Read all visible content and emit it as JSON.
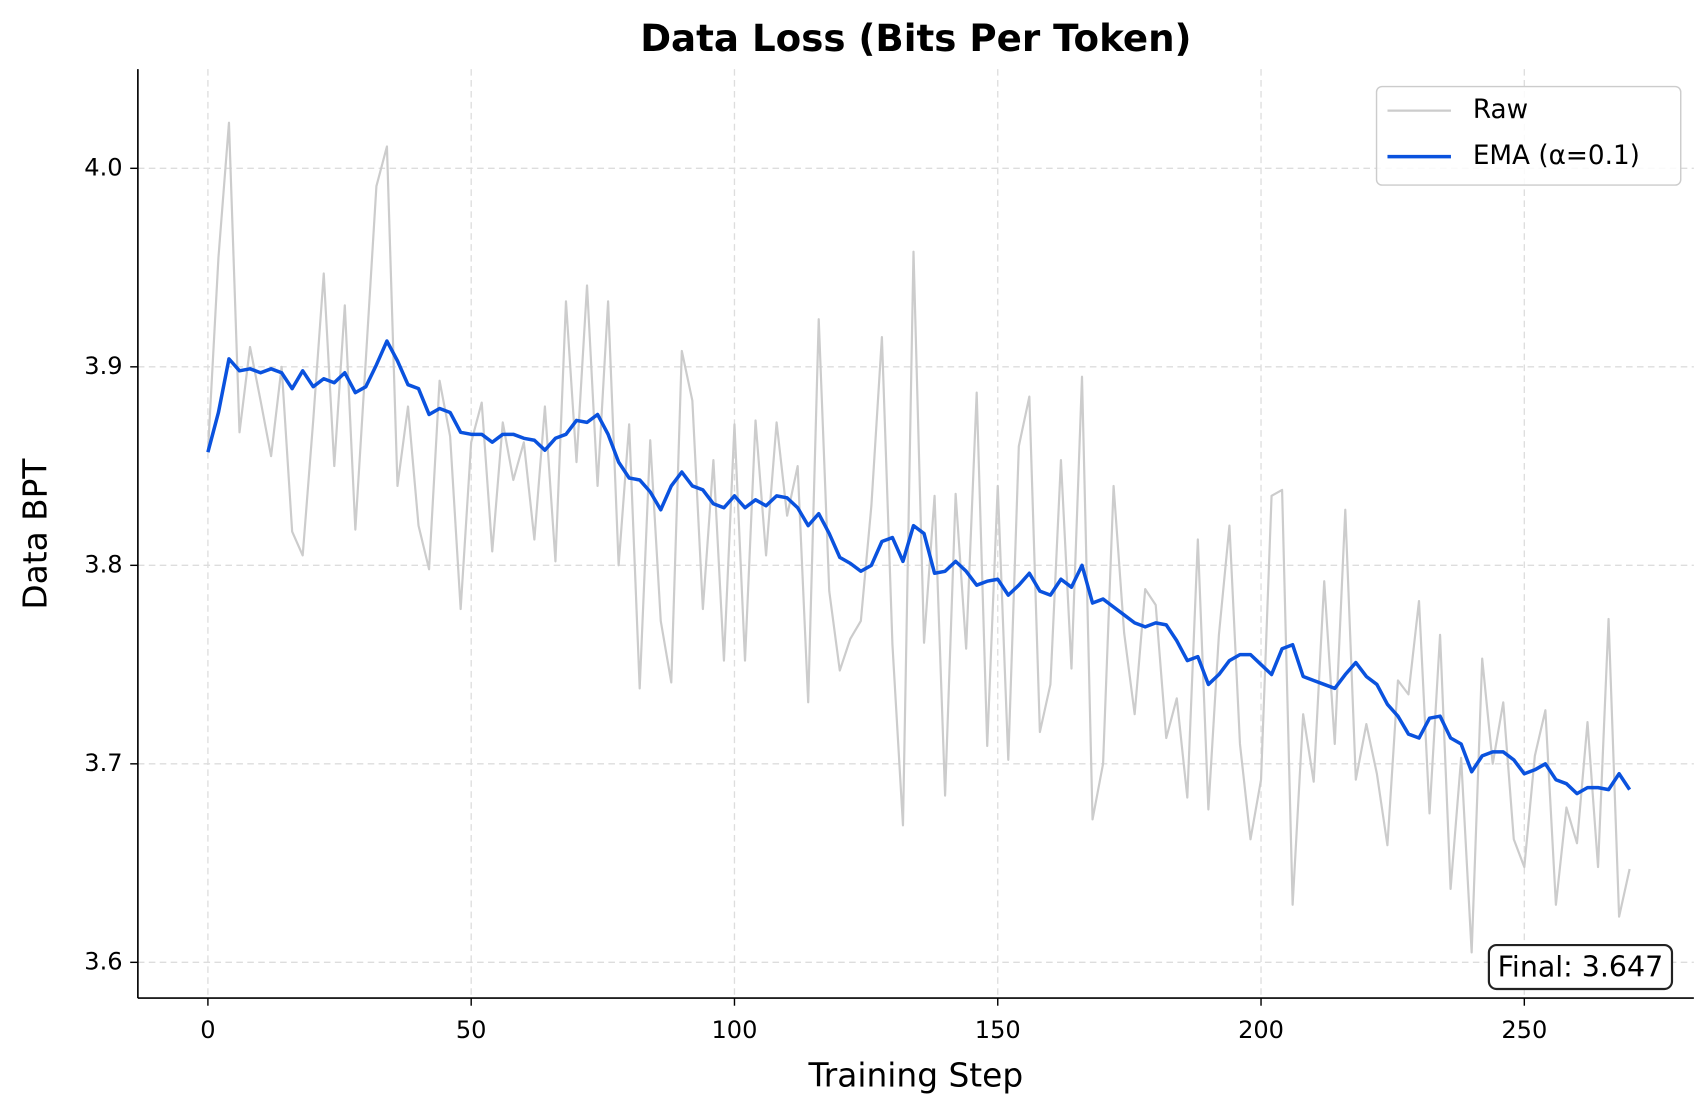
{
  "chart_data": {
    "type": "line",
    "title": "Data Loss (Bits Per Token)",
    "x_label": "Training Step",
    "y_label": "Data BPT",
    "x": [
      0,
      2,
      4,
      6,
      8,
      10,
      12,
      14,
      16,
      18,
      20,
      22,
      24,
      26,
      28,
      30,
      32,
      34,
      36,
      38,
      40,
      42,
      44,
      46,
      48,
      50,
      52,
      54,
      56,
      58,
      60,
      62,
      64,
      66,
      68,
      70,
      72,
      74,
      76,
      78,
      80,
      82,
      84,
      86,
      88,
      90,
      92,
      94,
      96,
      98,
      100,
      102,
      104,
      106,
      108,
      110,
      112,
      114,
      116,
      118,
      120,
      122,
      124,
      126,
      128,
      130,
      132,
      134,
      136,
      138,
      140,
      142,
      144,
      146,
      148,
      150,
      152,
      154,
      156,
      158,
      160,
      162,
      164,
      166,
      168,
      170,
      172,
      174,
      176,
      178,
      180,
      182,
      184,
      186,
      188,
      190,
      192,
      194,
      196,
      198,
      200,
      202,
      204,
      206,
      208,
      210,
      212,
      214,
      216,
      218,
      220,
      222,
      224,
      226,
      228,
      230,
      232,
      234,
      236,
      238,
      240,
      242,
      244,
      246,
      248,
      250,
      252,
      254,
      256,
      258,
      260,
      262,
      264,
      266,
      268,
      270
    ],
    "series": [
      {
        "name": "Raw",
        "color": "#cccccc",
        "width": 2,
        "values": [
          3.857,
          3.955,
          4.023,
          3.867,
          3.91,
          3.883,
          3.855,
          3.9,
          3.817,
          3.805,
          3.873,
          3.947,
          3.85,
          3.931,
          3.818,
          3.904,
          3.991,
          4.011,
          3.84,
          3.88,
          3.82,
          3.798,
          3.893,
          3.865,
          3.778,
          3.862,
          3.882,
          3.807,
          3.872,
          3.843,
          3.862,
          3.813,
          3.88,
          3.802,
          3.933,
          3.852,
          3.941,
          3.84,
          3.933,
          3.8,
          3.871,
          3.738,
          3.863,
          3.772,
          3.741,
          3.908,
          3.883,
          3.778,
          3.853,
          3.752,
          3.871,
          3.752,
          3.873,
          3.805,
          3.872,
          3.825,
          3.85,
          3.731,
          3.924,
          3.787,
          3.747,
          3.763,
          3.772,
          3.83,
          3.915,
          3.76,
          3.669,
          3.958,
          3.761,
          3.835,
          3.684,
          3.836,
          3.758,
          3.887,
          3.709,
          3.84,
          3.702,
          3.86,
          3.885,
          3.716,
          3.74,
          3.853,
          3.748,
          3.895,
          3.672,
          3.7,
          3.84,
          3.766,
          3.725,
          3.788,
          3.78,
          3.713,
          3.733,
          3.683,
          3.813,
          3.677,
          3.765,
          3.82,
          3.71,
          3.662,
          3.692,
          3.835,
          3.838,
          3.629,
          3.725,
          3.691,
          3.792,
          3.71,
          3.828,
          3.692,
          3.72,
          3.695,
          3.659,
          3.742,
          3.735,
          3.782,
          3.675,
          3.765,
          3.637,
          3.703,
          3.605,
          3.753,
          3.7,
          3.731,
          3.662,
          3.648,
          3.704,
          3.727,
          3.629,
          3.678,
          3.66,
          3.721,
          3.648,
          3.773,
          3.623,
          3.647
        ]
      },
      {
        "name": "EMA (α=0.1)",
        "color": "#0a52de",
        "width": 3.2,
        "values": [
          3.857,
          3.877,
          3.904,
          3.898,
          3.899,
          3.897,
          3.899,
          3.897,
          3.889,
          3.898,
          3.89,
          3.894,
          3.892,
          3.897,
          3.887,
          3.89,
          3.901,
          3.913,
          3.903,
          3.891,
          3.889,
          3.876,
          3.879,
          3.877,
          3.867,
          3.866,
          3.866,
          3.862,
          3.866,
          3.866,
          3.864,
          3.863,
          3.858,
          3.864,
          3.866,
          3.873,
          3.872,
          3.876,
          3.866,
          3.852,
          3.844,
          3.843,
          3.837,
          3.828,
          3.84,
          3.847,
          3.84,
          3.838,
          3.831,
          3.829,
          3.835,
          3.829,
          3.833,
          3.83,
          3.835,
          3.834,
          3.829,
          3.82,
          3.826,
          3.816,
          3.804,
          3.801,
          3.797,
          3.8,
          3.812,
          3.814,
          3.802,
          3.82,
          3.816,
          3.796,
          3.797,
          3.802,
          3.797,
          3.79,
          3.792,
          3.793,
          3.785,
          3.79,
          3.796,
          3.787,
          3.785,
          3.793,
          3.789,
          3.8,
          3.781,
          3.783,
          3.779,
          3.775,
          3.771,
          3.769,
          3.771,
          3.77,
          3.762,
          3.752,
          3.754,
          3.74,
          3.745,
          3.752,
          3.755,
          3.755,
          3.75,
          3.745,
          3.758,
          3.76,
          3.744,
          3.742,
          3.74,
          3.738,
          3.745,
          3.751,
          3.744,
          3.74,
          3.73,
          3.724,
          3.715,
          3.713,
          3.723,
          3.724,
          3.713,
          3.71,
          3.696,
          3.704,
          3.706,
          3.706,
          3.702,
          3.695,
          3.697,
          3.7,
          3.692,
          3.69,
          3.685,
          3.688,
          3.688,
          3.687,
          3.695,
          3.687
        ]
      }
    ],
    "annotation": "Final: 3.647",
    "xlim": [
      -13.3,
      282.2
    ],
    "ylim": [
      3.582,
      4.05
    ],
    "xticks": [
      0,
      50,
      100,
      150,
      200,
      250
    ],
    "yticks": [
      3.6,
      3.7,
      3.8,
      3.9,
      {
        "value": 4,
        "label": "4.0"
      }
    ],
    "grid": true,
    "legend": "upper right"
  }
}
